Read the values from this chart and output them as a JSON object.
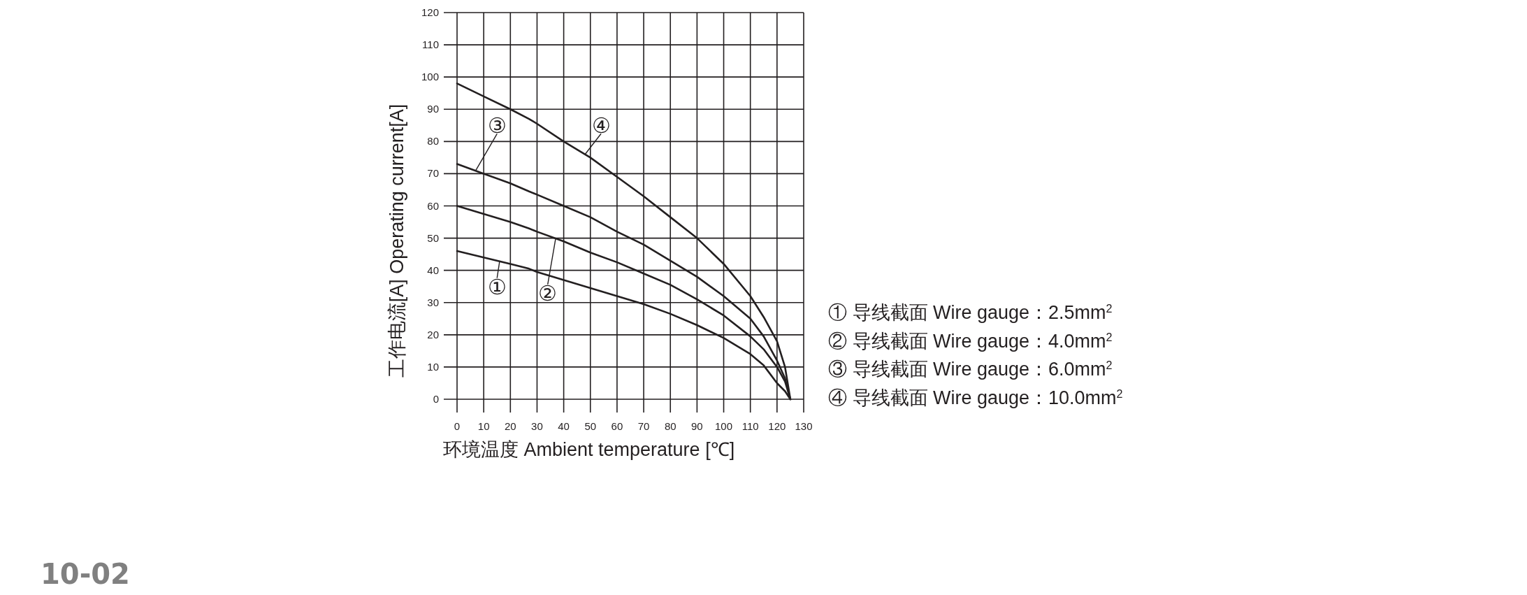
{
  "chart_data": {
    "type": "line",
    "xlabel": "环境温度 Ambient temperature [℃]",
    "ylabel": "工作电流[A]  Operating current[A]",
    "xlim": [
      0,
      130
    ],
    "xticks": [
      0,
      10,
      20,
      30,
      40,
      50,
      60,
      70,
      80,
      90,
      100,
      110,
      120,
      130
    ],
    "ylim": [
      0,
      120
    ],
    "yticks": [
      0,
      10,
      20,
      30,
      40,
      50,
      60,
      70,
      80,
      90,
      100,
      110,
      120
    ],
    "grid": true,
    "legend": "right",
    "marker": "none",
    "line_style": "solid",
    "x": [
      0,
      10,
      20,
      27,
      30,
      40,
      50,
      60,
      70,
      80,
      90,
      100,
      110,
      115,
      120,
      123,
      125
    ],
    "series": [
      {
        "name": "① 导线截面 Wire gauge：2.5mm$^{2}$",
        "color": "#231f20",
        "values": [
          46,
          44,
          42,
          40.5,
          39.5,
          37,
          34.5,
          32,
          29.5,
          26.5,
          23,
          19,
          14,
          10.5,
          5,
          2.5,
          0
        ]
      },
      {
        "name": "② 导线截面 Wire gauge：4.0mm$^{2}$",
        "color": "#231f20",
        "values": [
          60,
          57.5,
          55,
          53,
          52,
          49,
          45.5,
          42.5,
          39,
          35.5,
          31,
          26,
          19.5,
          15.5,
          10,
          5.5,
          0
        ]
      },
      {
        "name": "③ 导线截面 Wire gauge：6.0mm$^{2}$",
        "color": "#231f20",
        "values": [
          73,
          70,
          67,
          64.5,
          63.5,
          60,
          56.5,
          52,
          48,
          43,
          38,
          32,
          25,
          19.5,
          12,
          6.5,
          0
        ]
      },
      {
        "name": "④ 导线截面 Wire gauge：10.0mm$^{2}$",
        "color": "#231f20",
        "values": [
          98,
          94,
          90,
          87,
          85.5,
          80,
          75,
          69,
          63,
          56.5,
          50,
          42,
          32,
          25.5,
          18,
          10,
          0
        ]
      }
    ],
    "annotations": [
      {
        "text": "①",
        "x": 16,
        "y": 43
      },
      {
        "text": "②",
        "x": 37,
        "y": 50
      },
      {
        "text": "③",
        "x": 7,
        "y": 71
      },
      {
        "text": "④",
        "x": 48,
        "y": 76
      },
      "10-02"
    ]
  }
}
